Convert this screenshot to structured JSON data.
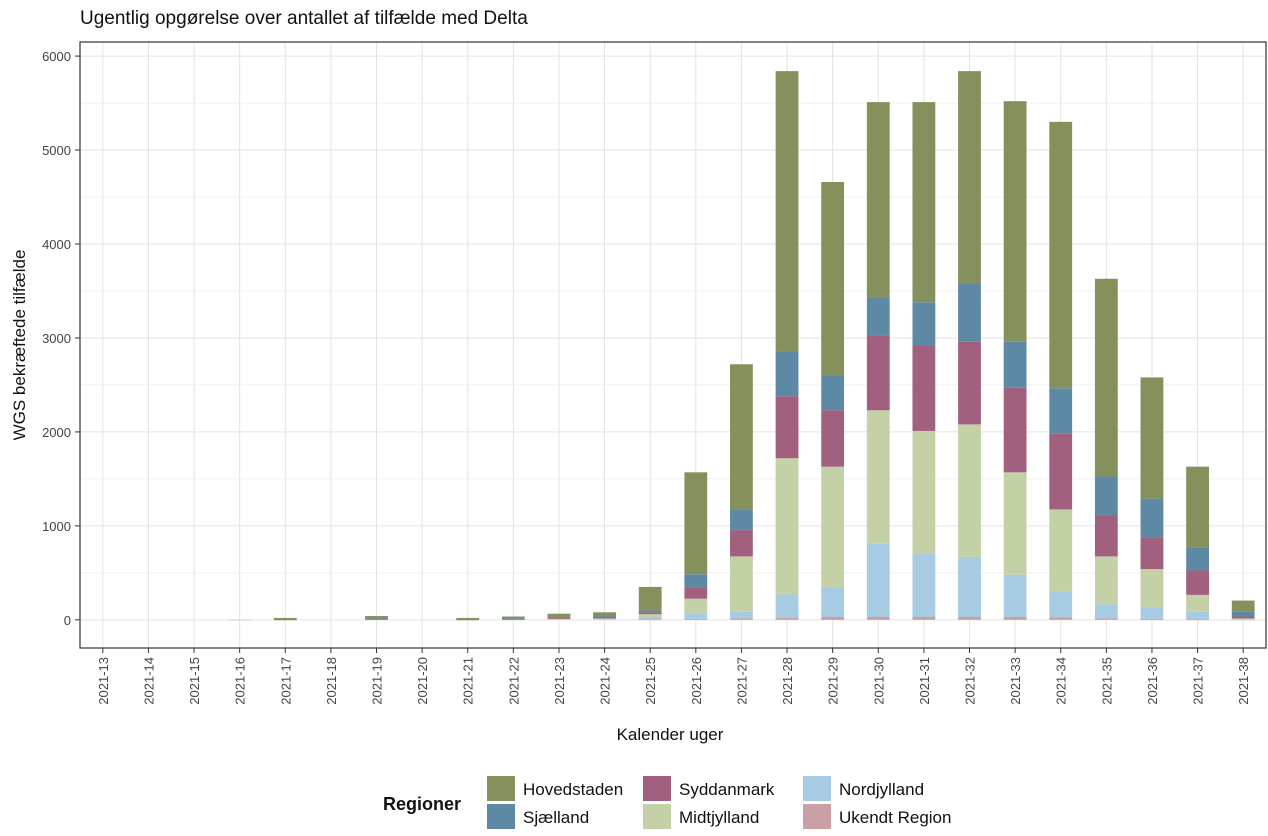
{
  "chart_data": {
    "type": "bar",
    "stacked": true,
    "title": "Ugentlig opgørelse over antallet af tilfælde med Delta",
    "xlabel": "Kalender uger",
    "ylabel": "WGS bekræftede tilfælde",
    "ylim": [
      -300,
      6150
    ],
    "yticks": [
      0,
      1000,
      2000,
      3000,
      4000,
      5000,
      6000
    ],
    "grid": true,
    "legend_position": "bottom",
    "legend_title": "Regioner",
    "categories": [
      "2021-13",
      "2021-14",
      "2021-15",
      "2021-16",
      "2021-17",
      "2021-18",
      "2021-19",
      "2021-20",
      "2021-21",
      "2021-22",
      "2021-23",
      "2021-24",
      "2021-25",
      "2021-26",
      "2021-27",
      "2021-28",
      "2021-29",
      "2021-30",
      "2021-31",
      "2021-32",
      "2021-33",
      "2021-34",
      "2021-35",
      "2021-36",
      "2021-37",
      "2021-38"
    ],
    "series": [
      {
        "name": "Ukendt Region",
        "color": "#C9A0A6",
        "values": [
          0,
          0,
          0,
          0,
          0,
          0,
          0,
          0,
          0,
          0,
          0,
          0,
          5,
          10,
          15,
          20,
          30,
          30,
          30,
          30,
          30,
          25,
          15,
          10,
          5,
          0
        ]
      },
      {
        "name": "Nordjylland",
        "color": "#A6CBE3",
        "values": [
          0,
          0,
          0,
          0,
          0,
          0,
          0,
          0,
          0,
          0,
          0,
          0,
          25,
          55,
          70,
          250,
          320,
          780,
          670,
          640,
          450,
          280,
          150,
          120,
          80,
          5
        ]
      },
      {
        "name": "Midtjylland",
        "color": "#C4D0A6",
        "values": [
          0,
          0,
          0,
          2,
          3,
          0,
          5,
          0,
          3,
          5,
          10,
          15,
          30,
          160,
          590,
          1450,
          1280,
          1420,
          1310,
          1410,
          1090,
          870,
          510,
          410,
          180,
          10
        ]
      },
      {
        "name": "Syddanmark",
        "color": "#A0607E",
        "values": [
          0,
          0,
          0,
          0,
          2,
          0,
          5,
          0,
          2,
          5,
          10,
          15,
          20,
          120,
          280,
          660,
          600,
          800,
          910,
          880,
          900,
          810,
          440,
          340,
          260,
          20
        ]
      },
      {
        "name": "Sjælland",
        "color": "#5E89A4",
        "values": [
          0,
          0,
          0,
          0,
          2,
          0,
          5,
          0,
          2,
          5,
          10,
          10,
          20,
          140,
          220,
          480,
          370,
          400,
          460,
          620,
          490,
          480,
          410,
          410,
          240,
          50
        ]
      },
      {
        "name": "Hovedstaden",
        "color": "#84915C",
        "values": [
          0,
          0,
          0,
          0,
          13,
          0,
          25,
          0,
          13,
          20,
          35,
          40,
          250,
          1085,
          1545,
          2980,
          2060,
          2080,
          2130,
          2260,
          2560,
          2835,
          2105,
          1290,
          865,
          120
        ]
      }
    ],
    "legend_order": [
      "Hovedstaden",
      "Sjælland",
      "Syddanmark",
      "Midtjylland",
      "Nordjylland",
      "Ukendt Region"
    ]
  }
}
